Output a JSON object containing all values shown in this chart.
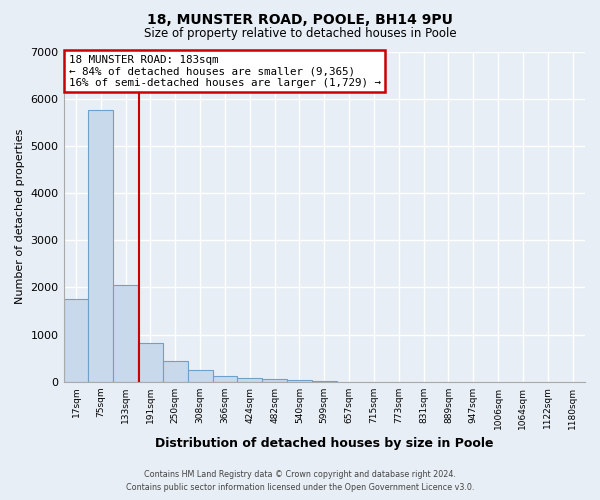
{
  "title": "18, MUNSTER ROAD, POOLE, BH14 9PU",
  "subtitle": "Size of property relative to detached houses in Poole",
  "xlabel": "Distribution of detached houses by size in Poole",
  "ylabel": "Number of detached properties",
  "categories": [
    "17sqm",
    "75sqm",
    "133sqm",
    "191sqm",
    "250sqm",
    "308sqm",
    "366sqm",
    "424sqm",
    "482sqm",
    "540sqm",
    "599sqm",
    "657sqm",
    "715sqm",
    "773sqm",
    "831sqm",
    "889sqm",
    "947sqm",
    "1006sqm",
    "1064sqm",
    "1122sqm",
    "1180sqm"
  ],
  "values": [
    1750,
    5750,
    2060,
    830,
    430,
    250,
    120,
    75,
    50,
    30,
    10,
    0,
    0,
    0,
    0,
    0,
    0,
    0,
    0,
    0,
    0
  ],
  "bar_color": "#c9d9ec",
  "bar_edge_color": "#6fa0c8",
  "vline_x": 2.55,
  "vline_color": "#cc0000",
  "annotation_title": "18 MUNSTER ROAD: 183sqm",
  "annotation_line1": "← 84% of detached houses are smaller (9,365)",
  "annotation_line2": "16% of semi-detached houses are larger (1,729) →",
  "annotation_box_color": "white",
  "annotation_box_edge": "#cc0000",
  "ylim": [
    0,
    7000
  ],
  "yticks": [
    0,
    1000,
    2000,
    3000,
    4000,
    5000,
    6000,
    7000
  ],
  "footer1": "Contains HM Land Registry data © Crown copyright and database right 2024.",
  "footer2": "Contains public sector information licensed under the Open Government Licence v3.0.",
  "bg_color": "#e8eef5",
  "plot_bg_color": "#e8eef5",
  "grid_color": "white"
}
